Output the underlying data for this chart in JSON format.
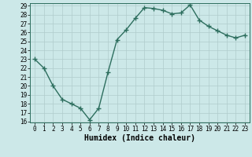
{
  "x": [
    0,
    1,
    2,
    3,
    4,
    5,
    6,
    7,
    8,
    9,
    10,
    11,
    12,
    13,
    14,
    15,
    16,
    17,
    18,
    19,
    20,
    21,
    22,
    23
  ],
  "y": [
    23,
    22,
    20,
    18.5,
    18,
    17.5,
    16.2,
    17.5,
    21.5,
    25.2,
    26.3,
    27.6,
    28.8,
    28.7,
    28.5,
    28.1,
    28.2,
    29.1,
    27.4,
    26.7,
    26.2,
    25.7,
    25.4,
    25.7
  ],
  "line_color": "#2d6e5e",
  "marker": "+",
  "marker_size": 4,
  "bg_color": "#cce8e8",
  "grid_color": "#b0cccc",
  "xlabel": "Humidex (Indice chaleur)",
  "ylim": [
    16,
    29
  ],
  "xlim": [
    -0.5,
    23.5
  ],
  "yticks": [
    16,
    17,
    18,
    19,
    20,
    21,
    22,
    23,
    24,
    25,
    26,
    27,
    28,
    29
  ],
  "xticks": [
    0,
    1,
    2,
    3,
    4,
    5,
    6,
    7,
    8,
    9,
    10,
    11,
    12,
    13,
    14,
    15,
    16,
    17,
    18,
    19,
    20,
    21,
    22,
    23
  ],
  "tick_fontsize": 5.5,
  "xlabel_fontsize": 7,
  "linewidth": 1.0
}
